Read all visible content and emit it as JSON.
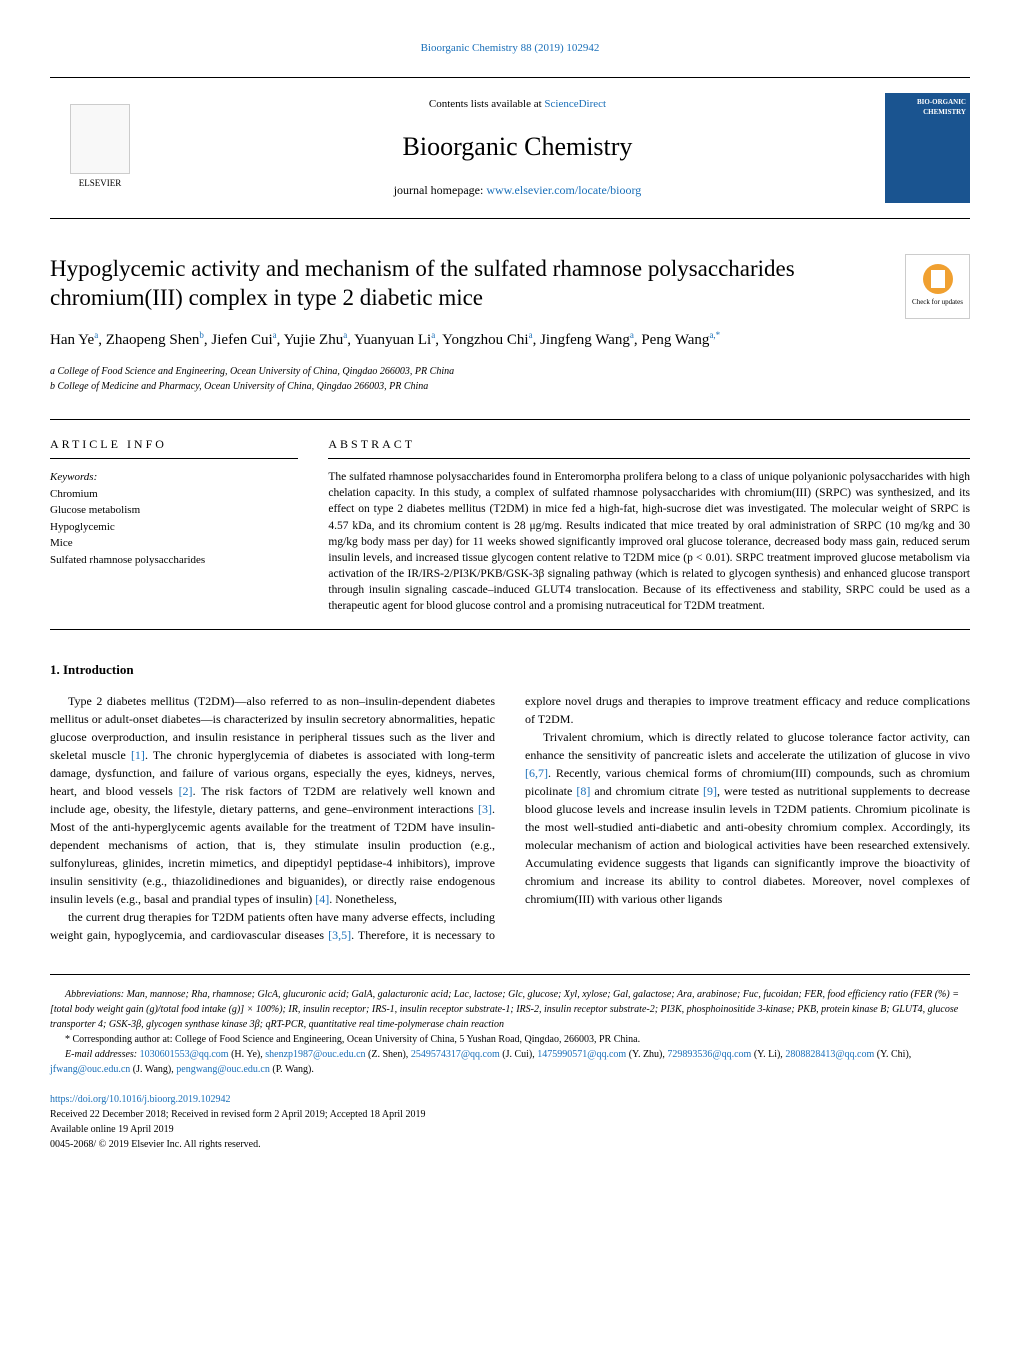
{
  "top_citation": "Bioorganic Chemistry 88 (2019) 102942",
  "header": {
    "contents_prefix": "Contents lists available at ",
    "contents_link": "ScienceDirect",
    "journal_title": "Bioorganic Chemistry",
    "homepage_prefix": "journal homepage: ",
    "homepage_link": "www.elsevier.com/locate/bioorg",
    "publisher_name": "ELSEVIER",
    "cover_text": "BIO-ORGANIC CHEMISTRY"
  },
  "check_updates": "Check for updates",
  "article": {
    "title": "Hypoglycemic activity and mechanism of the sulfated rhamnose polysaccharides chromium(III) complex in type 2 diabetic mice",
    "authors_html": "Han Ye<sup class='sup link'>a</sup>, Zhaopeng Shen<sup class='sup link'>b</sup>, Jiefen Cui<sup class='sup link'>a</sup>, Yujie Zhu<sup class='sup link'>a</sup>, Yuanyuan Li<sup class='sup link'>a</sup>, Yongzhou Chi<sup class='sup link'>a</sup>, Jingfeng Wang<sup class='sup link'>a</sup>, Peng Wang<sup class='sup link'>a,*</sup>",
    "affiliations": [
      "a College of Food Science and Engineering, Ocean University of China, Qingdao 266003, PR China",
      "b College of Medicine and Pharmacy, Ocean University of China, Qingdao 266003, PR China"
    ]
  },
  "article_info": {
    "header": "ARTICLE INFO",
    "keywords_label": "Keywords:",
    "keywords": [
      "Chromium",
      "Glucose metabolism",
      "Hypoglycemic",
      "Mice",
      "Sulfated rhamnose polysaccharides"
    ]
  },
  "abstract": {
    "header": "ABSTRACT",
    "text": "The sulfated rhamnose polysaccharides found in Enteromorpha prolifera belong to a class of unique polyanionic polysaccharides with high chelation capacity. In this study, a complex of sulfated rhamnose polysaccharides with chromium(III) (SRPC) was synthesized, and its effect on type 2 diabetes mellitus (T2DM) in mice fed a high-fat, high-sucrose diet was investigated. The molecular weight of SRPC is 4.57 kDa, and its chromium content is 28 μg/mg. Results indicated that mice treated by oral administration of SRPC (10 mg/kg and 30 mg/kg body mass per day) for 11 weeks showed significantly improved oral glucose tolerance, decreased body mass gain, reduced serum insulin levels, and increased tissue glycogen content relative to T2DM mice (p < 0.01). SRPC treatment improved glucose metabolism via activation of the IR/IRS-2/PI3K/PKB/GSK-3β signaling pathway (which is related to glycogen synthesis) and enhanced glucose transport through insulin signaling cascade–induced GLUT4 translocation. Because of its effectiveness and stability, SRPC could be used as a therapeutic agent for blood glucose control and a promising nutraceutical for T2DM treatment."
  },
  "introduction": {
    "title": "1. Introduction",
    "para1": "Type 2 diabetes mellitus (T2DM)—also referred to as non–insulin-dependent diabetes mellitus or adult-onset diabetes—is characterized by insulin secretory abnormalities, hepatic glucose overproduction, and insulin resistance in peripheral tissues such as the liver and skeletal muscle [1]. The chronic hyperglycemia of diabetes is associated with long-term damage, dysfunction, and failure of various organs, especially the eyes, kidneys, nerves, heart, and blood vessels [2]. The risk factors of T2DM are relatively well known and include age, obesity, the lifestyle, dietary patterns, and gene–environment interactions [3]. Most of the anti-hyperglycemic agents available for the treatment of T2DM have insulin-dependent mechanisms of action, that is, they stimulate insulin production (e.g., sulfonylureas, glinides, incretin mimetics, and dipeptidyl peptidase-4 inhibitors), improve insulin sensitivity (e.g., thiazolidinediones and biguanides), or directly raise endogenous insulin levels (e.g., basal and prandial types of insulin) [4]. Nonetheless,",
    "para2": "the current drug therapies for T2DM patients often have many adverse effects, including weight gain, hypoglycemia, and cardiovascular diseases [3,5]. Therefore, it is necessary to explore novel drugs and therapies to improve treatment efficacy and reduce complications of T2DM.",
    "para3": "Trivalent chromium, which is directly related to glucose tolerance factor activity, can enhance the sensitivity of pancreatic islets and accelerate the utilization of glucose in vivo [6,7]. Recently, various chemical forms of chromium(III) compounds, such as chromium picolinate [8] and chromium citrate [9], were tested as nutritional supplements to decrease blood glucose levels and increase insulin levels in T2DM patients. Chromium picolinate is the most well-studied anti-diabetic and anti-obesity chromium complex. Accordingly, its molecular mechanism of action and biological activities have been researched extensively. Accumulating evidence suggests that ligands can significantly improve the bioactivity of chromium and increase its ability to control diabetes. Moreover, novel complexes of chromium(III) with various other ligands"
  },
  "footnotes": {
    "abbreviations": "Abbreviations: Man, mannose; Rha, rhamnose; GlcA, glucuronic acid; GalA, galacturonic acid; Lac, lactose; Glc, glucose; Xyl, xylose; Gal, galactose; Ara, arabinose; Fuc, fucoidan; FER, food efficiency ratio (FER (%) = [total body weight gain (g)/total food intake (g)] × 100%); IR, insulin receptor; IRS-1, insulin receptor substrate-1; IRS-2, insulin receptor substrate-2; PI3K, phosphoinositide 3-kinase; PKB, protein kinase B; GLUT4, glucose transporter 4; GSK-3β, glycogen synthase kinase 3β; qRT-PCR, quantitative real time-polymerase chain reaction",
    "corresponding": "* Corresponding author at: College of Food Science and Engineering, Ocean University of China, 5 Yushan Road, Qingdao, 266003, PR China.",
    "email_prefix": "E-mail addresses: ",
    "emails_html": "<span class='link'>1030601553@qq.com</span> (H. Ye), <span class='link'>shenzp1987@ouc.edu.cn</span> (Z. Shen), <span class='link'>2549574317@qq.com</span> (J. Cui), <span class='link'>1475990571@qq.com</span> (Y. Zhu), <span class='link'>729893536@qq.com</span> (Y. Li), <span class='link'>2808828413@qq.com</span> (Y. Chi), <span class='link'>jfwang@ouc.edu.cn</span> (J. Wang), <span class='link'>pengwang@ouc.edu.cn</span> (P. Wang)."
  },
  "bottom": {
    "doi": "https://doi.org/10.1016/j.bioorg.2019.102942",
    "received": "Received 22 December 2018; Received in revised form 2 April 2019; Accepted 18 April 2019",
    "available": "Available online 19 April 2019",
    "copyright": "0045-2068/ © 2019 Elsevier Inc. All rights reserved."
  },
  "refs": [
    "[1]",
    "[2]",
    "[3]",
    "[4]",
    "[3,5]",
    "[6,7]",
    "[8]",
    "[9]"
  ]
}
